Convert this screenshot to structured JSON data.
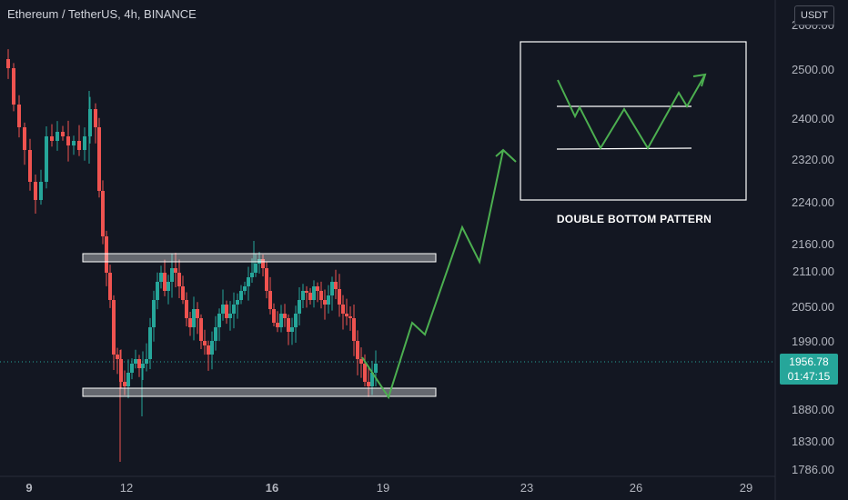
{
  "header": {
    "title": "Ethereum / TetherUS, 4h, BINANCE"
  },
  "currency": "USDT",
  "last_price": {
    "value": "1956.78",
    "countdown": "01:47:15"
  },
  "annotation": {
    "pattern_title": "DOUBLE BOTTOM PATTERN"
  },
  "colors": {
    "background": "#131722",
    "up": "#26a69a",
    "down": "#ef5350",
    "arrow": "#4caf50"
  },
  "chart_data": {
    "type": "candlestick",
    "y_ticks": [
      "2600.00",
      "2500.00",
      "2400.00",
      "2320.00",
      "2240.00",
      "2160.00",
      "2110.00",
      "2050.00",
      "1990.00",
      "1880.00",
      "1830.00",
      "1786.00"
    ],
    "x_ticks": [
      "9",
      "12",
      "16",
      "19",
      "23",
      "26",
      "29"
    ],
    "ylim": [
      1786,
      2600
    ],
    "resistance_zone": [
      2128,
      2148
    ],
    "support_zone": [
      1900,
      1916
    ],
    "projection_path": [
      1900,
      1960,
      2020,
      1975,
      2090,
      2050,
      2330
    ]
  }
}
